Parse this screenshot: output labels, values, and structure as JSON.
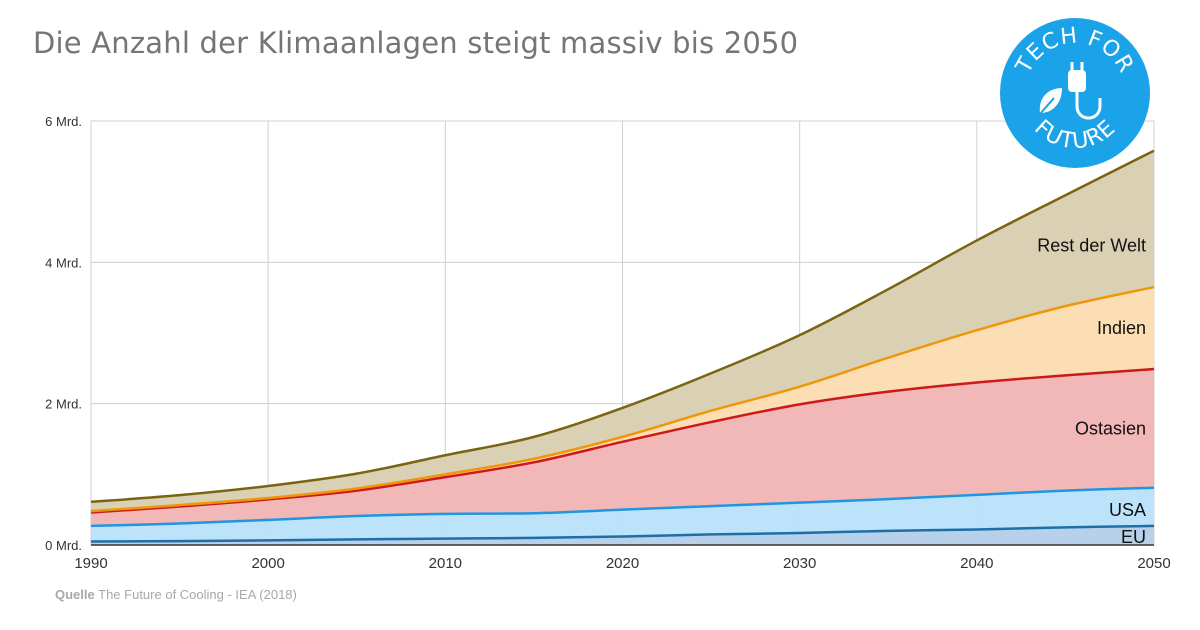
{
  "title": "Die Anzahl der Klimaanlagen steigt massiv bis 2050",
  "source": {
    "label": "Quelle",
    "text": "The Future of Cooling - IEA (2018)"
  },
  "logo": {
    "line1": "TECH FOR",
    "line2": "FUTURE",
    "icon": "plug-leaf-icon",
    "color": "#1aa3e8"
  },
  "chart_data": {
    "type": "area",
    "stacked": true,
    "x": [
      1990,
      1995,
      2000,
      2005,
      2010,
      2015,
      2020,
      2025,
      2030,
      2035,
      2040,
      2045,
      2050
    ],
    "ylim": [
      0,
      6
    ],
    "xlim": [
      1990,
      2050
    ],
    "yticks": [
      {
        "value": 0,
        "label": "0 Mrd."
      },
      {
        "value": 2,
        "label": "2 Mrd."
      },
      {
        "value": 4,
        "label": "4 Mrd."
      },
      {
        "value": 6,
        "label": "6 Mrd."
      }
    ],
    "xticks": [
      "1990",
      "2000",
      "2010",
      "2020",
      "2030",
      "2040",
      "2050"
    ],
    "grid": true,
    "series": [
      {
        "name": "EU",
        "fill": "#b2cfe8",
        "line": "#1e6fa8",
        "values": [
          0.05,
          0.055,
          0.065,
          0.08,
          0.09,
          0.1,
          0.12,
          0.15,
          0.17,
          0.2,
          0.22,
          0.25,
          0.27
        ]
      },
      {
        "name": "USA",
        "fill": "#b8e2fa",
        "line": "#2196e0",
        "values": [
          0.22,
          0.25,
          0.29,
          0.33,
          0.35,
          0.35,
          0.38,
          0.4,
          0.43,
          0.45,
          0.49,
          0.52,
          0.54
        ]
      },
      {
        "name": "Ostasien",
        "fill": "#f1b3b3",
        "line": "#cc1a1a",
        "values": [
          0.19,
          0.24,
          0.29,
          0.36,
          0.52,
          0.72,
          0.96,
          1.19,
          1.39,
          1.52,
          1.59,
          1.63,
          1.68
        ]
      },
      {
        "name": "Indien",
        "fill": "#fcdcb0",
        "line": "#f0960a",
        "values": [
          0.02,
          0.02,
          0.02,
          0.03,
          0.04,
          0.05,
          0.07,
          0.16,
          0.25,
          0.48,
          0.74,
          0.98,
          1.16
        ]
      },
      {
        "name": "Rest der Welt",
        "fill": "#d8cfb0",
        "line": "#7a6410",
        "values": [
          0.13,
          0.14,
          0.17,
          0.21,
          0.27,
          0.31,
          0.41,
          0.53,
          0.73,
          0.97,
          1.27,
          1.57,
          1.93
        ]
      }
    ]
  }
}
